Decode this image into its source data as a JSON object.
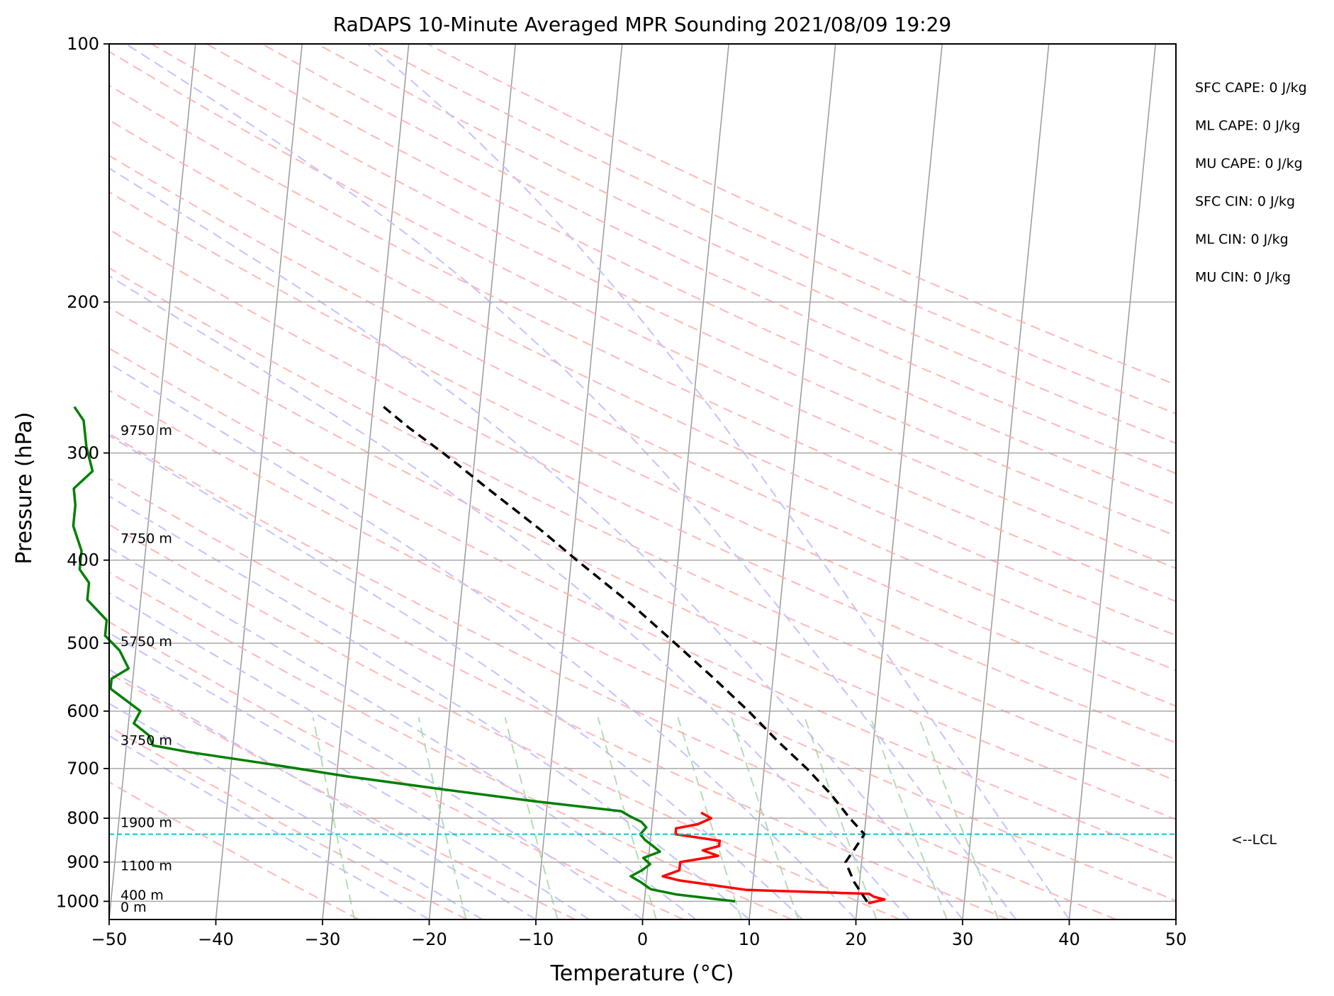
{
  "chart_data": {
    "type": "line",
    "title": "RaDAPS 10-Minute Averaged MPR Sounding 2021/08/09 19:29",
    "xlabel": "Temperature (°C)",
    "ylabel": "Pressure (hPa)",
    "xlim": [
      -50,
      50
    ],
    "ylim": [
      1050,
      100
    ],
    "y_scale": "log",
    "skew": "skew-T log-p",
    "grid": true,
    "x_ticks": [
      "−50",
      "−40",
      "−30",
      "−20",
      "−10",
      "0",
      "10",
      "20",
      "30",
      "40",
      "50"
    ],
    "y_ticks": [
      "100",
      "200",
      "300",
      "400",
      "500",
      "600",
      "700",
      "800",
      "900",
      "1000"
    ],
    "series": [
      {
        "key": "temperature",
        "color": "#ff0000",
        "points": [
          {
            "p": 788,
            "t": 4.5
          },
          {
            "p": 800,
            "t": 5.5
          },
          {
            "p": 813,
            "t": 4.3
          },
          {
            "p": 822,
            "t": 2.3
          },
          {
            "p": 835,
            "t": 2.3
          },
          {
            "p": 850,
            "t": 6.5
          },
          {
            "p": 862,
            "t": 6.5
          },
          {
            "p": 872,
            "t": 5.0
          },
          {
            "p": 885,
            "t": 6.5
          },
          {
            "p": 900,
            "t": 3.0
          },
          {
            "p": 920,
            "t": 3.0
          },
          {
            "p": 935,
            "t": 1.5
          },
          {
            "p": 945,
            "t": 3.0
          },
          {
            "p": 970,
            "t": 9.5
          },
          {
            "p": 980,
            "t": 21.0
          },
          {
            "p": 988,
            "t": 21.5
          },
          {
            "p": 995,
            "t": 22.5
          },
          {
            "p": 1005,
            "t": 21.0
          }
        ]
      },
      {
        "key": "dewpoint",
        "color": "#007f00",
        "points": [
          {
            "p": 265,
            "t": -58.0
          },
          {
            "p": 275,
            "t": -57.0
          },
          {
            "p": 295,
            "t": -56.5
          },
          {
            "p": 315,
            "t": -55.7
          },
          {
            "p": 330,
            "t": -57.3
          },
          {
            "p": 345,
            "t": -57.0
          },
          {
            "p": 365,
            "t": -57.0
          },
          {
            "p": 390,
            "t": -56.0
          },
          {
            "p": 410,
            "t": -56.0
          },
          {
            "p": 425,
            "t": -55.0
          },
          {
            "p": 445,
            "t": -55.0
          },
          {
            "p": 470,
            "t": -53.0
          },
          {
            "p": 490,
            "t": -53.0
          },
          {
            "p": 510,
            "t": -51.5
          },
          {
            "p": 535,
            "t": -50.5
          },
          {
            "p": 550,
            "t": -52.0
          },
          {
            "p": 565,
            "t": -52.0
          },
          {
            "p": 600,
            "t": -49.0
          },
          {
            "p": 620,
            "t": -49.5
          },
          {
            "p": 640,
            "t": -48.0
          },
          {
            "p": 658,
            "t": -47.5
          },
          {
            "p": 670,
            "t": -44.0
          },
          {
            "p": 690,
            "t": -37.0
          },
          {
            "p": 715,
            "t": -29.0
          },
          {
            "p": 740,
            "t": -20.0
          },
          {
            "p": 765,
            "t": -11.0
          },
          {
            "p": 785,
            "t": -3.0
          },
          {
            "p": 795,
            "t": -2.2
          },
          {
            "p": 808,
            "t": -1.0
          },
          {
            "p": 820,
            "t": -0.5
          },
          {
            "p": 835,
            "t": -1.0
          },
          {
            "p": 848,
            "t": -0.5
          },
          {
            "p": 860,
            "t": 0.2
          },
          {
            "p": 875,
            "t": 1.0
          },
          {
            "p": 890,
            "t": -0.5
          },
          {
            "p": 905,
            "t": 0.2
          },
          {
            "p": 920,
            "t": -0.5
          },
          {
            "p": 935,
            "t": -1.5
          },
          {
            "p": 950,
            "t": -0.5
          },
          {
            "p": 968,
            "t": 0.5
          },
          {
            "p": 982,
            "t": 3.0
          },
          {
            "p": 990,
            "t": 5.5
          },
          {
            "p": 1000,
            "t": 8.5
          }
        ]
      },
      {
        "key": "parcel",
        "color": "#000000",
        "points": [
          {
            "p": 265,
            "t": -29.0
          },
          {
            "p": 280,
            "t": -26.5
          },
          {
            "p": 300,
            "t": -23.0
          },
          {
            "p": 330,
            "t": -18.5
          },
          {
            "p": 370,
            "t": -13.0
          },
          {
            "p": 400,
            "t": -9.5
          },
          {
            "p": 450,
            "t": -4.0
          },
          {
            "p": 500,
            "t": 0.5
          },
          {
            "p": 550,
            "t": 4.5
          },
          {
            "p": 600,
            "t": 8.0
          },
          {
            "p": 650,
            "t": 11.0
          },
          {
            "p": 700,
            "t": 14.0
          },
          {
            "p": 750,
            "t": 16.5
          },
          {
            "p": 800,
            "t": 18.5
          },
          {
            "p": 835,
            "t": 20.0
          },
          {
            "p": 870,
            "t": 19.2
          },
          {
            "p": 900,
            "t": 18.5
          },
          {
            "p": 950,
            "t": 19.5
          },
          {
            "p": 1005,
            "t": 21.0
          }
        ]
      }
    ],
    "lcl": {
      "p": 835,
      "label": "<--LCL"
    },
    "height_labels": [
      {
        "label": "9750 m",
        "p": 282
      },
      {
        "label": "7750 m",
        "p": 377
      },
      {
        "label": "5750 m",
        "p": 497
      },
      {
        "label": "3750 m",
        "p": 648
      },
      {
        "label": "1900 m",
        "p": 808
      },
      {
        "label": "1100 m",
        "p": 908
      },
      {
        "label": "400 m",
        "p": 982
      },
      {
        "label": "0 m",
        "p": 1015
      }
    ],
    "indices": [
      {
        "label": "SFC CAPE: 0 J/kg"
      },
      {
        "label": "ML CAPE: 0 J/kg"
      },
      {
        "label": "MU CAPE: 0 J/kg"
      },
      {
        "label": "SFC CIN: 0 J/kg"
      },
      {
        "label": "ML CIN: 0 J/kg"
      },
      {
        "label": "MU CIN: 0 J/kg"
      }
    ]
  }
}
